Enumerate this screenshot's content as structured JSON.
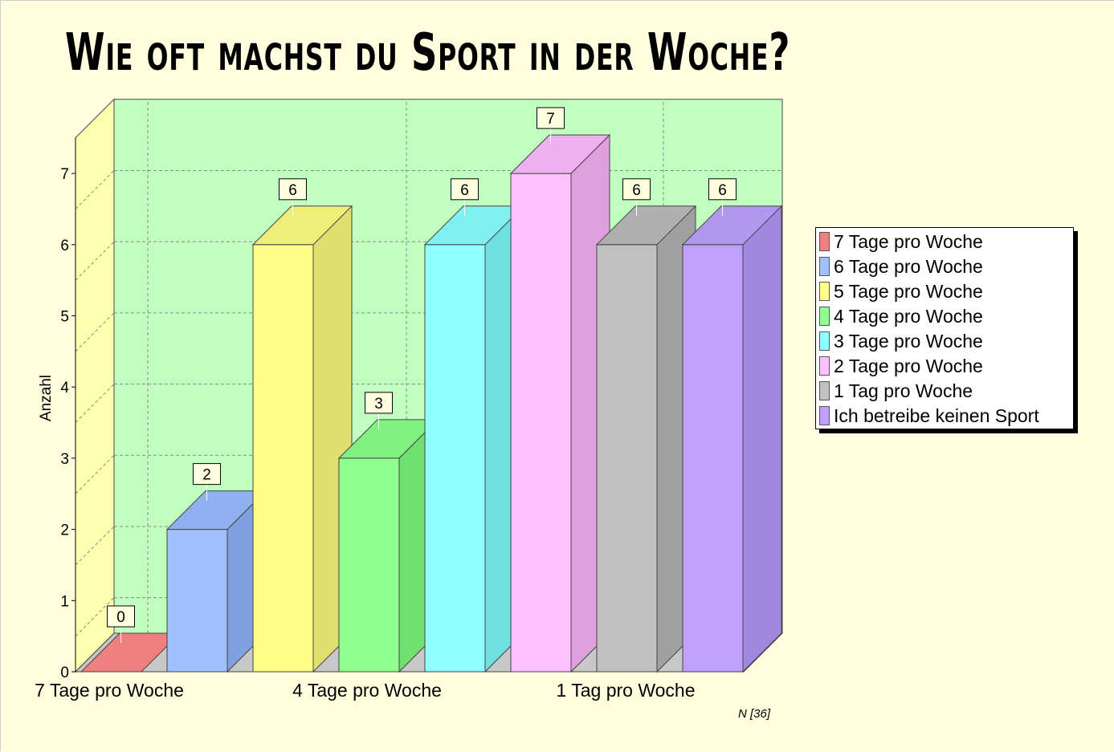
{
  "title": "Wie oft machst du Sport in der Woche?",
  "footer": "N [36]",
  "chart_data": {
    "type": "bar",
    "title": "Wie oft machst du Sport in der Woche?",
    "ylabel": "Anzahl",
    "ylim": [
      0,
      7.5
    ],
    "yticks": [
      0,
      1,
      2,
      3,
      4,
      5,
      6,
      7
    ],
    "grid": true,
    "legend_position": "right",
    "x_tick_labels": [
      "7 Tage pro Woche",
      "4 Tage pro Woche",
      "1 Tag pro Woche"
    ],
    "categories": [
      "7 Tage pro Woche",
      "6 Tage pro Woche",
      "5 Tage pro Woche",
      "4 Tage pro Woche",
      "3 Tage pro Woche",
      "2 Tage pro Woche",
      "1 Tag pro Woche",
      "Ich betreibe keinen Sport"
    ],
    "values": [
      0,
      2,
      6,
      3,
      6,
      7,
      6,
      6
    ],
    "colors": [
      "#f08080",
      "#a0c0ff",
      "#ffff88",
      "#90ff90",
      "#90ffff",
      "#ffc0ff",
      "#c0c0c0",
      "#c0a0ff"
    ],
    "colors_side": [
      "#d06868",
      "#80a0e0",
      "#e0e070",
      "#70e070",
      "#70e0e0",
      "#e0a0e0",
      "#a0a0a0",
      "#a088e0"
    ],
    "colors_top": [
      "#e07070",
      "#90b0f0",
      "#eeee78",
      "#80f080",
      "#80f0f0",
      "#f0b0f0",
      "#b0b0b0",
      "#b098f0"
    ]
  }
}
